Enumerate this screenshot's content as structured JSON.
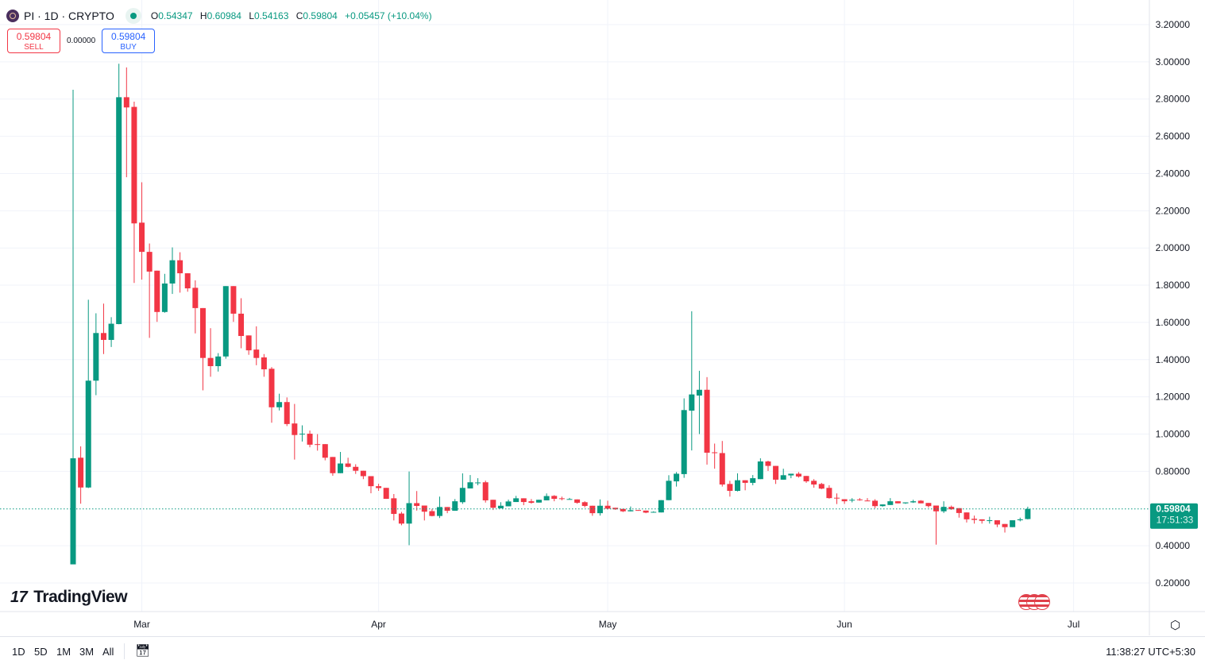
{
  "header": {
    "symbol": "PI · 1D · CRYPTO",
    "ohlc": {
      "o_label": "O",
      "o": "0.54347",
      "h_label": "H",
      "h": "0.60984",
      "l_label": "L",
      "l": "0.54163",
      "c_label": "C",
      "c": "0.59804",
      "change": "+0.05457 (+10.04%)"
    }
  },
  "trade": {
    "sell_price": "0.59804",
    "sell_label": "SELL",
    "spread": "0.00000",
    "buy_price": "0.59804",
    "buy_label": "BUY"
  },
  "logo": "TradingView",
  "price_badge": {
    "price": "0.59804",
    "countdown": "17:51:33"
  },
  "bottom_bar": {
    "ranges": [
      "1D",
      "5D",
      "1M",
      "3M",
      "All"
    ],
    "clock": "11:38:27 UTC+5:30"
  },
  "colors": {
    "up": "#089981",
    "down": "#f23645",
    "grid": "#f0f3fa"
  },
  "chart_data": {
    "type": "candlestick",
    "title": "",
    "ylim": [
      0.1,
      3.3
    ],
    "y_ticks": [
      "3.20000",
      "3.00000",
      "2.80000",
      "2.60000",
      "2.40000",
      "2.20000",
      "2.00000",
      "1.80000",
      "1.60000",
      "1.40000",
      "1.20000",
      "1.00000",
      "0.80000",
      "0.40000",
      "0.20000"
    ],
    "x_ticks": [
      {
        "label": "Mar",
        "date": "Mar 1"
      },
      {
        "label": "Apr",
        "date": "Apr 1"
      },
      {
        "label": "May",
        "date": "May 1"
      },
      {
        "label": "Jun",
        "date": "Jun 1"
      },
      {
        "label": "Jul",
        "date": "Jul 1"
      }
    ],
    "grid": true,
    "last_price": 0.59804,
    "columns": [
      "date",
      "open",
      "high",
      "low",
      "close"
    ],
    "candles": [
      [
        "Feb 20",
        0.3,
        2.85,
        0.3,
        0.87
      ],
      [
        "Feb 21",
        0.873,
        0.934,
        0.626,
        0.713
      ],
      [
        "Feb 22",
        0.713,
        1.722,
        0.71,
        1.287
      ],
      [
        "Feb 23",
        1.287,
        1.649,
        1.209,
        1.543
      ],
      [
        "Feb 24",
        1.543,
        1.701,
        1.43,
        1.506
      ],
      [
        "Feb 25",
        1.506,
        1.628,
        1.468,
        1.593
      ],
      [
        "Feb 26",
        1.591,
        2.99,
        1.59,
        2.81
      ],
      [
        "Feb 27",
        2.81,
        2.97,
        2.38,
        2.755
      ],
      [
        "Feb 28",
        2.758,
        2.786,
        1.812,
        2.132
      ],
      [
        "Mar 1",
        2.136,
        2.353,
        1.83,
        1.979
      ],
      [
        "Mar 2",
        1.979,
        2.024,
        1.517,
        1.873
      ],
      [
        "Mar 3",
        1.878,
        1.878,
        1.603,
        1.656
      ],
      [
        "Mar 4",
        1.656,
        1.861,
        1.652,
        1.809
      ],
      [
        "Mar 5",
        1.809,
        2.003,
        1.753,
        1.934
      ],
      [
        "Mar 6",
        1.934,
        1.977,
        1.76,
        1.864
      ],
      [
        "Mar 7",
        1.864,
        1.864,
        1.765,
        1.783
      ],
      [
        "Mar 8",
        1.786,
        1.826,
        1.541,
        1.677
      ],
      [
        "Mar 9",
        1.677,
        1.677,
        1.235,
        1.409
      ],
      [
        "Mar 10",
        1.409,
        1.569,
        1.308,
        1.365
      ],
      [
        "Mar 11",
        1.365,
        1.435,
        1.336,
        1.417
      ],
      [
        "Mar 12",
        1.417,
        1.795,
        1.405,
        1.795
      ],
      [
        "Mar 13",
        1.795,
        1.795,
        1.603,
        1.647
      ],
      [
        "Mar 14",
        1.647,
        1.73,
        1.461,
        1.527
      ],
      [
        "Mar 15",
        1.53,
        1.53,
        1.426,
        1.45
      ],
      [
        "Mar 16",
        1.454,
        1.579,
        1.37,
        1.409
      ],
      [
        "Mar 17",
        1.412,
        1.43,
        1.308,
        1.348
      ],
      [
        "Mar 18",
        1.351,
        1.36,
        1.061,
        1.144
      ],
      [
        "Mar 19",
        1.144,
        1.217,
        1.127,
        1.172
      ],
      [
        "Mar 20",
        1.172,
        1.197,
        1.043,
        1.054
      ],
      [
        "Mar 21",
        1.057,
        1.162,
        0.863,
        0.995
      ],
      [
        "Mar 22",
        0.998,
        1.047,
        0.96,
        1.002
      ],
      [
        "Mar 23",
        1.002,
        1.019,
        0.929,
        0.943
      ],
      [
        "Mar 24",
        0.946,
        1.0,
        0.911,
        0.943
      ],
      [
        "Mar 25",
        0.946,
        0.946,
        0.859,
        0.873
      ],
      [
        "Mar 26",
        0.877,
        0.877,
        0.776,
        0.79
      ],
      [
        "Mar 27",
        0.79,
        0.904,
        0.79,
        0.842
      ],
      [
        "Mar 28",
        0.842,
        0.873,
        0.821,
        0.824
      ],
      [
        "Mar 29",
        0.824,
        0.838,
        0.786,
        0.803
      ],
      [
        "Mar 30",
        0.803,
        0.803,
        0.758,
        0.774
      ],
      [
        "Mar 31",
        0.774,
        0.774,
        0.682,
        0.72
      ],
      [
        "Apr 1",
        0.72,
        0.733,
        0.695,
        0.71
      ],
      [
        "Apr 2",
        0.711,
        0.711,
        0.652,
        0.652
      ],
      [
        "Apr 3",
        0.655,
        0.678,
        0.536,
        0.571
      ],
      [
        "Apr 4",
        0.573,
        0.582,
        0.51,
        0.519
      ],
      [
        "Apr 5",
        0.519,
        0.799,
        0.403,
        0.629
      ],
      [
        "Apr 6",
        0.629,
        0.694,
        0.589,
        0.614
      ],
      [
        "Apr 7",
        0.616,
        0.616,
        0.536,
        0.583
      ],
      [
        "Apr 8",
        0.586,
        0.598,
        0.558,
        0.56
      ],
      [
        "Apr 9",
        0.56,
        0.664,
        0.549,
        0.608
      ],
      [
        "Apr 10",
        0.608,
        0.608,
        0.575,
        0.588
      ],
      [
        "Apr 11",
        0.588,
        0.651,
        0.588,
        0.639
      ],
      [
        "Apr 12",
        0.634,
        0.789,
        0.625,
        0.711
      ],
      [
        "Apr 13",
        0.708,
        0.78,
        0.708,
        0.741
      ],
      [
        "Apr 14",
        0.737,
        0.763,
        0.725,
        0.74
      ],
      [
        "Apr 15",
        0.741,
        0.75,
        0.632,
        0.644
      ],
      [
        "Apr 16",
        0.647,
        0.647,
        0.592,
        0.604
      ],
      [
        "Apr 17",
        0.601,
        0.634,
        0.601,
        0.615
      ],
      [
        "Apr 18",
        0.612,
        0.648,
        0.612,
        0.638
      ],
      [
        "Apr 19",
        0.635,
        0.668,
        0.635,
        0.655
      ],
      [
        "Apr 20",
        0.655,
        0.655,
        0.618,
        0.635
      ],
      [
        "Apr 21",
        0.639,
        0.651,
        0.626,
        0.631
      ],
      [
        "Apr 22",
        0.632,
        0.647,
        0.632,
        0.647
      ],
      [
        "Apr 23",
        0.644,
        0.681,
        0.644,
        0.667
      ],
      [
        "Apr 24",
        0.668,
        0.672,
        0.639,
        0.652
      ],
      [
        "Apr 25",
        0.655,
        0.664,
        0.644,
        0.652
      ],
      [
        "Apr 26",
        0.648,
        0.657,
        0.648,
        0.651
      ],
      [
        "Apr 27",
        0.649,
        0.649,
        0.626,
        0.631
      ],
      [
        "Apr 28",
        0.634,
        0.639,
        0.606,
        0.614
      ],
      [
        "Apr 29",
        0.615,
        0.615,
        0.561,
        0.575
      ],
      [
        "Apr 30",
        0.575,
        0.649,
        0.562,
        0.615
      ],
      [
        "May 1",
        0.615,
        0.642,
        0.595,
        0.599
      ],
      [
        "May 2",
        0.604,
        0.604,
        0.593,
        0.596
      ],
      [
        "May 3",
        0.598,
        0.598,
        0.581,
        0.585
      ],
      [
        "May 4",
        0.585,
        0.611,
        0.585,
        0.591
      ],
      [
        "May 5",
        0.592,
        0.592,
        0.588,
        0.589
      ],
      [
        "May 6",
        0.589,
        0.589,
        0.575,
        0.578
      ],
      [
        "May 7",
        0.579,
        0.585,
        0.579,
        0.582
      ],
      [
        "May 8",
        0.579,
        0.645,
        0.579,
        0.645
      ],
      [
        "May 9",
        0.645,
        0.779,
        0.645,
        0.749
      ],
      [
        "May 10",
        0.746,
        0.796,
        0.718,
        0.787
      ],
      [
        "May 11",
        0.785,
        1.192,
        0.765,
        1.129
      ],
      [
        "May 12",
        1.126,
        1.66,
        0.912,
        1.213
      ],
      [
        "May 13",
        1.207,
        1.34,
        1.0,
        1.238
      ],
      [
        "May 14",
        1.238,
        1.306,
        0.836,
        0.9
      ],
      [
        "May 15",
        0.902,
        0.949,
        0.814,
        0.9
      ],
      [
        "May 16",
        0.898,
        0.963,
        0.718,
        0.729
      ],
      [
        "May 17",
        0.732,
        0.749,
        0.664,
        0.695
      ],
      [
        "May 18",
        0.695,
        0.789,
        0.692,
        0.752
      ],
      [
        "May 19",
        0.752,
        0.752,
        0.698,
        0.738
      ],
      [
        "May 20",
        0.738,
        0.78,
        0.725,
        0.763
      ],
      [
        "May 21",
        0.758,
        0.87,
        0.758,
        0.853
      ],
      [
        "May 22",
        0.853,
        0.857,
        0.802,
        0.829
      ],
      [
        "May 23",
        0.829,
        0.829,
        0.732,
        0.755
      ],
      [
        "May 24",
        0.755,
        0.814,
        0.755,
        0.779
      ],
      [
        "May 25",
        0.778,
        0.787,
        0.763,
        0.787
      ],
      [
        "May 26",
        0.787,
        0.796,
        0.766,
        0.772
      ],
      [
        "May 27",
        0.775,
        0.775,
        0.738,
        0.746
      ],
      [
        "May 28",
        0.749,
        0.758,
        0.712,
        0.729
      ],
      [
        "May 29",
        0.732,
        0.738,
        0.704,
        0.707
      ],
      [
        "May 30",
        0.711,
        0.725,
        0.653,
        0.656
      ],
      [
        "May 31",
        0.658,
        0.681,
        0.624,
        0.656
      ],
      [
        "Jun 1",
        0.65,
        0.65,
        0.625,
        0.639
      ],
      [
        "Jun 2",
        0.645,
        0.656,
        0.633,
        0.647
      ],
      [
        "Jun 3",
        0.649,
        0.656,
        0.642,
        0.646
      ],
      [
        "Jun 4",
        0.643,
        0.656,
        0.64,
        0.64
      ],
      [
        "Jun 5",
        0.642,
        0.65,
        0.602,
        0.613
      ],
      [
        "Jun 6",
        0.613,
        0.622,
        0.61,
        0.622
      ],
      [
        "Jun 7",
        0.619,
        0.656,
        0.619,
        0.639
      ],
      [
        "Jun 8",
        0.639,
        0.639,
        0.628,
        0.628
      ],
      [
        "Jun 9",
        0.628,
        0.633,
        0.625,
        0.633
      ],
      [
        "Jun 10",
        0.633,
        0.647,
        0.63,
        0.639
      ],
      [
        "Jun 11",
        0.642,
        0.645,
        0.628,
        0.628
      ],
      [
        "Jun 12",
        0.63,
        0.63,
        0.605,
        0.613
      ],
      [
        "Jun 13",
        0.616,
        0.616,
        0.406,
        0.585
      ],
      [
        "Jun 14",
        0.585,
        0.639,
        0.576,
        0.609
      ],
      [
        "Jun 15",
        0.609,
        0.616,
        0.593,
        0.596
      ],
      [
        "Jun 16",
        0.602,
        0.602,
        0.551,
        0.576
      ],
      [
        "Jun 17",
        0.579,
        0.579,
        0.525,
        0.542
      ],
      [
        "Jun 18",
        0.545,
        0.562,
        0.519,
        0.539
      ],
      [
        "Jun 19",
        0.542,
        0.542,
        0.519,
        0.534
      ],
      [
        "Jun 20",
        0.534,
        0.556,
        0.519,
        0.537
      ],
      [
        "Jun 21",
        0.537,
        0.537,
        0.5,
        0.514
      ],
      [
        "Jun 22",
        0.517,
        0.517,
        0.471,
        0.5
      ],
      [
        "Jun 23",
        0.5,
        0.537,
        0.5,
        0.537
      ],
      [
        "Jun 24",
        0.537,
        0.551,
        0.531,
        0.542
      ],
      [
        "Jun 25",
        0.54347,
        0.60984,
        0.54163,
        0.59804
      ]
    ]
  }
}
